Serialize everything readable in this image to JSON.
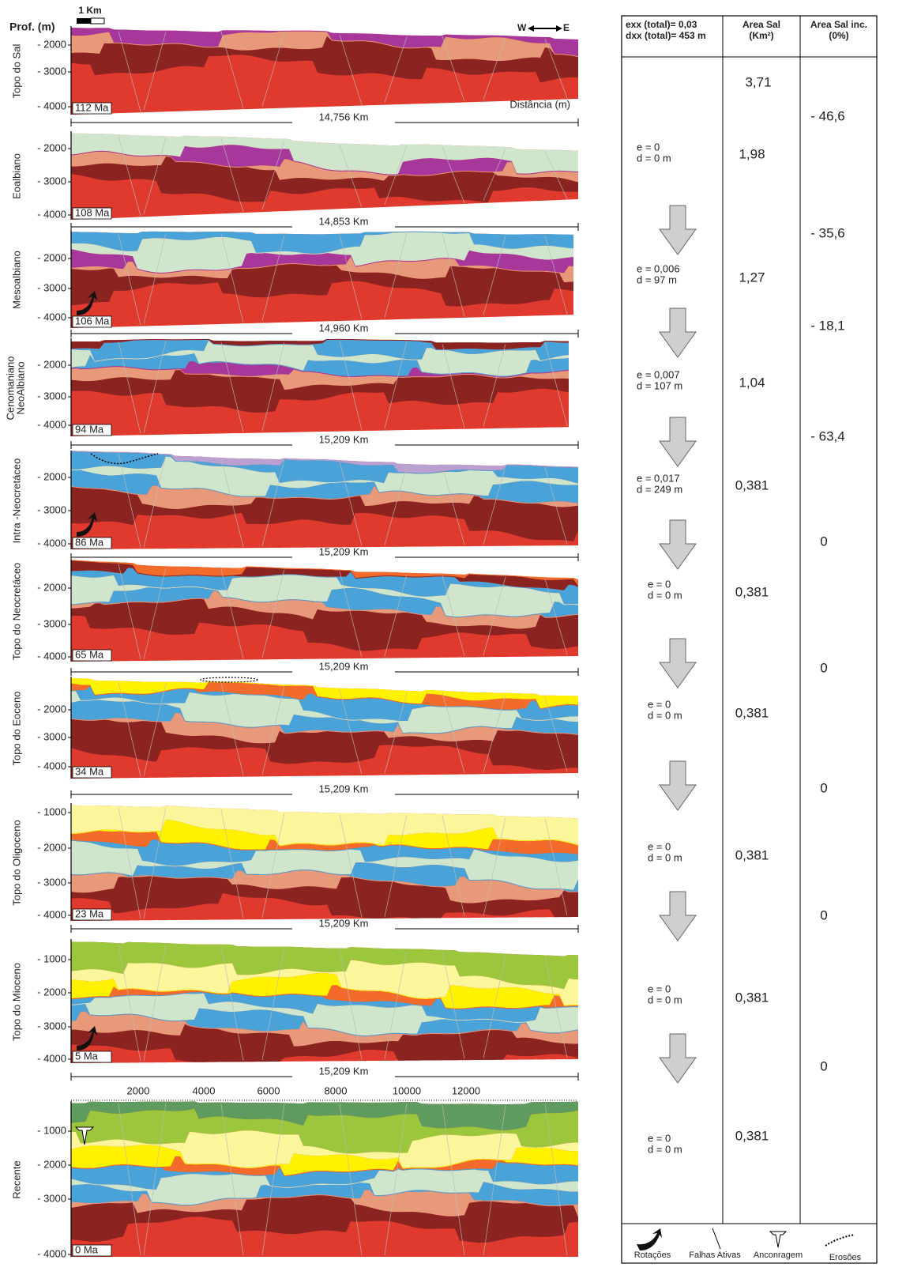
{
  "header": {
    "scale": "1 Km",
    "depth_label": "Prof. (m)",
    "west": "W",
    "east": "E",
    "distance_label": "Distância (m)"
  },
  "panels": [
    {
      "label": [
        "Topo do Sal"
      ],
      "age": "112 Ma",
      "depths": [
        "- 2000",
        "- 3000",
        "- 4000"
      ]
    },
    {
      "label": [
        "Eoalbiano"
      ],
      "age": "108 Ma",
      "depths": [
        "- 2000",
        "- 3000",
        "- 4000"
      ]
    },
    {
      "label": [
        "Mesoalbiano"
      ],
      "age": "106 Ma",
      "depths": [
        "- 2000",
        "- 3000",
        "- 4000"
      ]
    },
    {
      "label": [
        "Cenomaniano",
        "NeoAlbiano"
      ],
      "age": "94 Ma",
      "depths": [
        "- 2000",
        "- 3000",
        "- 4000"
      ]
    },
    {
      "label": [
        "Intra -Neocretáceo"
      ],
      "age": "86 Ma",
      "depths": [
        "- 2000",
        "- 3000",
        "- 4000"
      ]
    },
    {
      "label": [
        "Topo do Neocretáceo"
      ],
      "age": "65 Ma",
      "depths": [
        "- 2000",
        "- 3000",
        "- 4000"
      ]
    },
    {
      "label": [
        "Topo do Eoceno"
      ],
      "age": "34 Ma",
      "depths": [
        "- 2000",
        "- 3000",
        "- 4000"
      ]
    },
    {
      "label": [
        "Topo do Oligoceno"
      ],
      "age": "23 Ma",
      "depths": [
        "- 1000",
        "- 2000",
        "- 3000",
        "- 4000"
      ]
    },
    {
      "label": [
        "Topo do Mioceno"
      ],
      "age": "5 Ma",
      "depths": [
        "- 1000",
        "- 2000",
        "- 3000",
        "- 4000"
      ]
    },
    {
      "label": [
        "Recente"
      ],
      "age": "0 Ma",
      "depths": [
        "- 1000",
        "- 2000",
        "- 3000",
        "- 4000"
      ]
    }
  ],
  "widths": [
    "14,756 Km",
    "14,853 Km",
    "14,960 Km",
    "15,209 Km",
    "15,209 Km",
    "15,209 Km",
    "15,209 Km",
    "15,209 Km",
    "15,209 Km"
  ],
  "distance_ticks": [
    "2000",
    "4000",
    "6000",
    "8000",
    "10000",
    "12000"
  ],
  "table": {
    "headers": [
      [
        "exx (total)= 0,03",
        "dxx (total)= 453 m"
      ],
      [
        "Area Sal",
        "(Km²)"
      ],
      [
        "Area Sal inc.",
        "(0%)"
      ]
    ],
    "extensions": [
      [
        "e =  0",
        "d =  0 m"
      ],
      [
        "e =  0,006",
        "d =  97 m"
      ],
      [
        "e =  0,007",
        "d =  107  m"
      ],
      [
        "e =  0,017",
        "d =  249 m"
      ],
      [
        "e = 0",
        "d = 0 m"
      ],
      [
        "e = 0",
        "d = 0 m"
      ],
      [
        "e = 0",
        "d = 0 m"
      ],
      [
        "e = 0",
        "d = 0 m"
      ],
      [
        "e = 0",
        "d = 0 m"
      ]
    ],
    "area": [
      "3,71",
      "1,98",
      "1,27",
      "1,04",
      "0,381",
      "0,381",
      "0,381",
      "0,381",
      "0,381",
      "0,381"
    ],
    "area_change": [
      "- 46,6",
      "- 35,6",
      "- 18,1",
      "- 63,4",
      "0",
      "0",
      "0",
      "0",
      "0"
    ]
  },
  "legend": [
    "Rotações",
    "Falhas Ativas",
    "Anconragem",
    "Erosões"
  ]
}
